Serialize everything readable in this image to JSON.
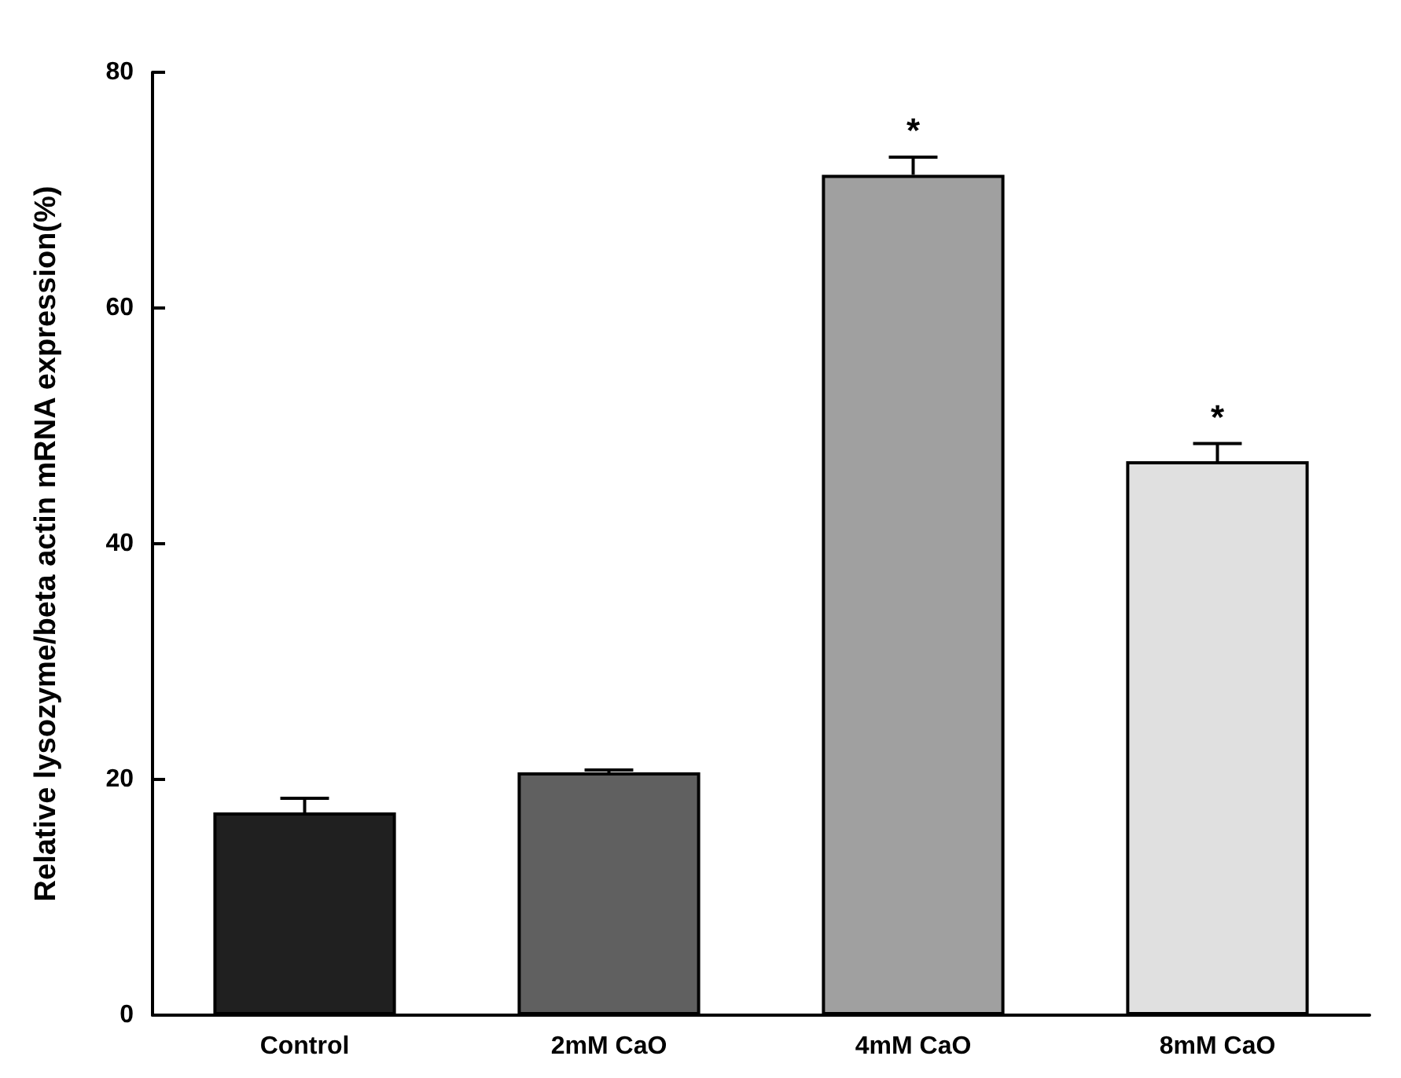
{
  "chart_data": {
    "type": "bar",
    "ylabel": "Relative lysozyme/beta actin mRNA expression(%)",
    "categories": [
      "Control",
      "2mM CaO",
      "4mM CaO",
      "8mM CaO"
    ],
    "values": [
      17.2,
      20.6,
      71.3,
      47.0
    ],
    "colors": [
      "#202020",
      "#606060",
      "#a0a0a0",
      "#e0e0e0"
    ],
    "errors": [
      1.2,
      0.2,
      1.5,
      1.5
    ],
    "ylim": [
      0,
      80
    ],
    "yticks": [
      0,
      20,
      40,
      60,
      80
    ],
    "grid": false,
    "annotations": [
      {
        "text": "*",
        "x": "4mM CaO",
        "y": 72.8
      },
      {
        "text": "*",
        "x": "8mM CaO",
        "y": 48.5
      }
    ]
  }
}
